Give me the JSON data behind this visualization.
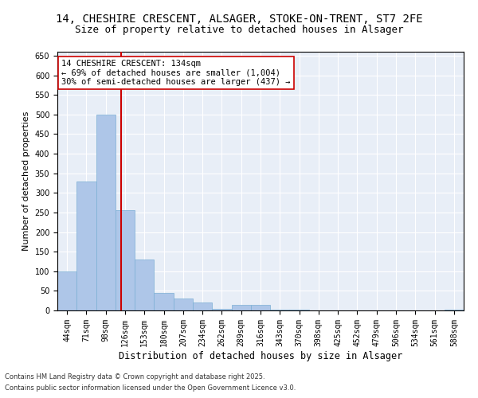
{
  "title1": "14, CHESHIRE CRESCENT, ALSAGER, STOKE-ON-TRENT, ST7 2FE",
  "title2": "Size of property relative to detached houses in Alsager",
  "xlabel": "Distribution of detached houses by size in Alsager",
  "ylabel": "Number of detached properties",
  "categories": [
    "44sqm",
    "71sqm",
    "98sqm",
    "126sqm",
    "153sqm",
    "180sqm",
    "207sqm",
    "234sqm",
    "262sqm",
    "289sqm",
    "316sqm",
    "343sqm",
    "370sqm",
    "398sqm",
    "425sqm",
    "452sqm",
    "479sqm",
    "506sqm",
    "534sqm",
    "561sqm",
    "588sqm"
  ],
  "values": [
    100,
    330,
    500,
    255,
    130,
    45,
    30,
    20,
    5,
    15,
    15,
    2,
    2,
    1,
    1,
    1,
    1,
    1,
    1,
    1,
    2
  ],
  "bar_color": "#aec6e8",
  "bar_edge_color": "#7bafd4",
  "marker_color": "#cc0000",
  "annotation_text": "14 CHESHIRE CRESCENT: 134sqm\n← 69% of detached houses are smaller (1,004)\n30% of semi-detached houses are larger (437) →",
  "annotation_box_color": "#ffffff",
  "annotation_box_edge": "#cc0000",
  "ylim": [
    0,
    660
  ],
  "yticks": [
    0,
    50,
    100,
    150,
    200,
    250,
    300,
    350,
    400,
    450,
    500,
    550,
    600,
    650
  ],
  "background_color": "#e8eef7",
  "footer1": "Contains HM Land Registry data © Crown copyright and database right 2025.",
  "footer2": "Contains public sector information licensed under the Open Government Licence v3.0.",
  "title_fontsize": 10,
  "subtitle_fontsize": 9,
  "tick_fontsize": 7,
  "ylabel_fontsize": 8,
  "xlabel_fontsize": 8.5
}
